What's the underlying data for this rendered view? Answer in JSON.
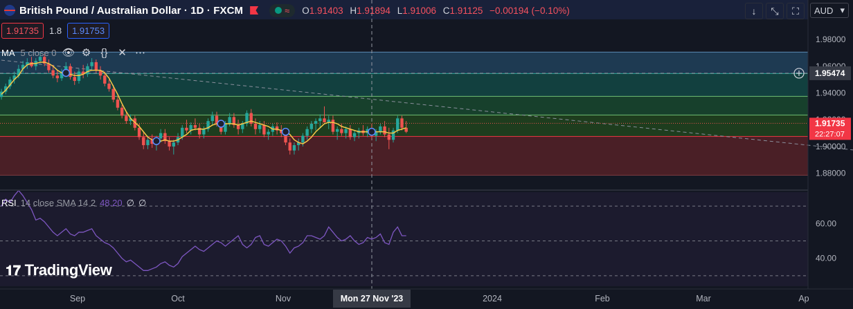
{
  "header": {
    "symbol_title": "British Pound / Australian Dollar · 1D · FXCM",
    "ohlc": {
      "o_label": "O",
      "o": "1.91403",
      "h_label": "H",
      "h": "1.91894",
      "l_label": "L",
      "l": "1.91006",
      "c_label": "C",
      "c": "1.91125",
      "change": "−0.00194 (−0.10%)"
    },
    "sell_price": "1.91735",
    "spread": "1.8",
    "buy_price": "1.91753",
    "currency": "AUD",
    "buttons": [
      "down-arrow-icon",
      "collapse-icon",
      "fullscreen-icon"
    ]
  },
  "ma_legend": {
    "name": "MA",
    "params": "5 close 0"
  },
  "rsi_legend": {
    "name": "RSI",
    "params": "14 close SMA 14 2",
    "value": "48.20",
    "extra1": "∅",
    "extra2": "∅"
  },
  "logo": {
    "text": "TradingView"
  },
  "colors": {
    "bg": "#131722",
    "up": "#26a69a",
    "down": "#ef5350",
    "ma": "#f7c948",
    "rsi": "#7e57c2",
    "accent": "#2962ff"
  },
  "chart_data": {
    "type": "candlestick",
    "title": "British Pound / Australian Dollar · 1D · FXCM",
    "ylim": [
      1.87,
      1.995
    ],
    "y_ticks": [
      "1.98000",
      "1.96000",
      "1.94000",
      "1.92000",
      "1.90000",
      "1.88000"
    ],
    "x_ticks": [
      "Sep",
      "Oct",
      "Nov",
      "Mon 27 Nov '23",
      "2024",
      "Feb",
      "Mar",
      "Ap"
    ],
    "price_labels": {
      "crosshair": "1.95474",
      "last": "1.91735",
      "countdown": "22:27:07"
    },
    "zones": [
      {
        "from": 1.9545,
        "to": 1.9705,
        "color": "#1e3a52"
      },
      {
        "from": 1.9375,
        "to": 1.9545,
        "color": "#12403f"
      },
      {
        "from": 1.9235,
        "to": 1.9375,
        "color": "#17402c"
      },
      {
        "from": 1.9075,
        "to": 1.9235,
        "color": "#1e3d1e"
      },
      {
        "from": 1.8785,
        "to": 1.9075,
        "color": "#4a1f26"
      }
    ],
    "levels": [
      1.9705,
      1.9545,
      1.9375,
      1.9235,
      1.9075,
      1.8785
    ],
    "crosshair_price": 1.95474,
    "last_price": 1.91735,
    "trendline": [
      [
        0,
        1.9645
      ],
      [
        230,
        1.8865
      ]
    ],
    "candles": [
      [
        1.937,
        1.943,
        1.935,
        1.941
      ],
      [
        1.941,
        1.947,
        1.939,
        1.945
      ],
      [
        1.945,
        1.952,
        1.943,
        1.95
      ],
      [
        1.95,
        1.956,
        1.947,
        1.953
      ],
      [
        1.953,
        1.961,
        1.951,
        1.958
      ],
      [
        1.958,
        1.964,
        1.955,
        1.961
      ],
      [
        1.961,
        1.966,
        1.958,
        1.963
      ],
      [
        1.963,
        1.967,
        1.959,
        1.96
      ],
      [
        1.96,
        1.966,
        1.957,
        1.964
      ],
      [
        1.964,
        1.97,
        1.962,
        1.967
      ],
      [
        1.967,
        1.969,
        1.96,
        1.962
      ],
      [
        1.962,
        1.965,
        1.955,
        1.957
      ],
      [
        1.957,
        1.961,
        1.951,
        1.953
      ],
      [
        1.953,
        1.957,
        1.948,
        1.951
      ],
      [
        1.951,
        1.958,
        1.949,
        1.956
      ],
      [
        1.956,
        1.963,
        1.953,
        1.96
      ],
      [
        1.96,
        1.962,
        1.95,
        1.952
      ],
      [
        1.952,
        1.956,
        1.946,
        1.949
      ],
      [
        1.949,
        1.958,
        1.947,
        1.956
      ],
      [
        1.956,
        1.961,
        1.951,
        1.954
      ],
      [
        1.954,
        1.962,
        1.952,
        1.96
      ],
      [
        1.96,
        1.966,
        1.957,
        1.963
      ],
      [
        1.963,
        1.965,
        1.955,
        1.957
      ],
      [
        1.957,
        1.96,
        1.95,
        1.953
      ],
      [
        1.953,
        1.956,
        1.945,
        1.947
      ],
      [
        1.947,
        1.95,
        1.941,
        1.943
      ],
      [
        1.943,
        1.946,
        1.933,
        1.935
      ],
      [
        1.935,
        1.938,
        1.927,
        1.929
      ],
      [
        1.929,
        1.931,
        1.921,
        1.923
      ],
      [
        1.923,
        1.926,
        1.917,
        1.919
      ],
      [
        1.919,
        1.924,
        1.916,
        1.921
      ],
      [
        1.921,
        1.923,
        1.912,
        1.914
      ],
      [
        1.914,
        1.917,
        1.905,
        1.907
      ],
      [
        1.907,
        1.911,
        1.898,
        1.901
      ],
      [
        1.901,
        1.908,
        1.898,
        1.905
      ],
      [
        1.905,
        1.909,
        1.899,
        1.902
      ],
      [
        1.902,
        1.908,
        1.897,
        1.906
      ],
      [
        1.906,
        1.913,
        1.903,
        1.91
      ],
      [
        1.91,
        1.913,
        1.902,
        1.904
      ],
      [
        1.904,
        1.907,
        1.897,
        1.9
      ],
      [
        1.9,
        1.905,
        1.894,
        1.903
      ],
      [
        1.903,
        1.91,
        1.901,
        1.907
      ],
      [
        1.907,
        1.916,
        1.905,
        1.914
      ],
      [
        1.914,
        1.92,
        1.91,
        1.912
      ],
      [
        1.912,
        1.918,
        1.909,
        1.916
      ],
      [
        1.916,
        1.921,
        1.912,
        1.914
      ],
      [
        1.914,
        1.917,
        1.906,
        1.909
      ],
      [
        1.909,
        1.915,
        1.906,
        1.913
      ],
      [
        1.913,
        1.921,
        1.911,
        1.919
      ],
      [
        1.919,
        1.926,
        1.916,
        1.923
      ],
      [
        1.923,
        1.926,
        1.915,
        1.917
      ],
      [
        1.917,
        1.92,
        1.909,
        1.911
      ],
      [
        1.911,
        1.919,
        1.909,
        1.917
      ],
      [
        1.917,
        1.925,
        1.915,
        1.922
      ],
      [
        1.922,
        1.925,
        1.914,
        1.916
      ],
      [
        1.916,
        1.92,
        1.909,
        1.913
      ],
      [
        1.913,
        1.919,
        1.91,
        1.917
      ],
      [
        1.917,
        1.927,
        1.915,
        1.925
      ],
      [
        1.925,
        1.928,
        1.915,
        1.917
      ],
      [
        1.917,
        1.921,
        1.909,
        1.913
      ],
      [
        1.913,
        1.919,
        1.91,
        1.916
      ],
      [
        1.916,
        1.919,
        1.907,
        1.909
      ],
      [
        1.909,
        1.913,
        1.905,
        1.911
      ],
      [
        1.911,
        1.917,
        1.908,
        1.915
      ],
      [
        1.915,
        1.918,
        1.909,
        1.912
      ],
      [
        1.912,
        1.916,
        1.907,
        1.91
      ],
      [
        1.91,
        1.913,
        1.901,
        1.903
      ],
      [
        1.903,
        1.906,
        1.894,
        1.897
      ],
      [
        1.897,
        1.903,
        1.894,
        1.901
      ],
      [
        1.901,
        1.906,
        1.897,
        1.903
      ],
      [
        1.903,
        1.91,
        1.9,
        1.908
      ],
      [
        1.908,
        1.915,
        1.905,
        1.913
      ],
      [
        1.913,
        1.919,
        1.91,
        1.917
      ],
      [
        1.917,
        1.921,
        1.912,
        1.919
      ],
      [
        1.919,
        1.924,
        1.914,
        1.921
      ],
      [
        1.921,
        1.93,
        1.918,
        1.918
      ],
      [
        1.918,
        1.923,
        1.913,
        1.92
      ],
      [
        1.92,
        1.923,
        1.909,
        1.911
      ],
      [
        1.911,
        1.915,
        1.905,
        1.913
      ],
      [
        1.913,
        1.917,
        1.908,
        1.91
      ],
      [
        1.91,
        1.915,
        1.906,
        1.913
      ],
      [
        1.913,
        1.916,
        1.905,
        1.907
      ],
      [
        1.907,
        1.912,
        1.904,
        1.91
      ],
      [
        1.91,
        1.914,
        1.906,
        1.912
      ],
      [
        1.912,
        1.916,
        1.908,
        1.91
      ],
      [
        1.91,
        1.915,
        1.907,
        1.913
      ],
      [
        1.913,
        1.917,
        1.906,
        1.908
      ],
      [
        1.908,
        1.913,
        1.904,
        1.911
      ],
      [
        1.911,
        1.917,
        1.909,
        1.915
      ],
      [
        1.915,
        1.919,
        1.907,
        1.909
      ],
      [
        1.909,
        1.914,
        1.898,
        1.905
      ],
      [
        1.905,
        1.914,
        1.903,
        1.912
      ],
      [
        1.912,
        1.923,
        1.91,
        1.921
      ],
      [
        1.921,
        1.923,
        1.912,
        1.914
      ],
      [
        1.914,
        1.919,
        1.91,
        1.911
      ]
    ],
    "ma_values": [
      1.939,
      1.942,
      1.946,
      1.95,
      1.953,
      1.958,
      1.961,
      1.962,
      1.962,
      1.963,
      1.963,
      1.962,
      1.96,
      1.957,
      1.955,
      1.955,
      1.954,
      1.953,
      1.953,
      1.954,
      1.956,
      1.957,
      1.957,
      1.957,
      1.955,
      1.951,
      1.945,
      1.939,
      1.932,
      1.926,
      1.921,
      1.918,
      1.915,
      1.911,
      1.907,
      1.905,
      1.904,
      1.904,
      1.905,
      1.904,
      1.904,
      1.905,
      1.907,
      1.909,
      1.912,
      1.913,
      1.913,
      1.913,
      1.914,
      1.916,
      1.917,
      1.917,
      1.917,
      1.917,
      1.917,
      1.916,
      1.917,
      1.918,
      1.919,
      1.918,
      1.917,
      1.916,
      1.915,
      1.913,
      1.913,
      1.912,
      1.911,
      1.909,
      1.905,
      1.903,
      1.902,
      1.904,
      1.907,
      1.911,
      1.914,
      1.917,
      1.918,
      1.918,
      1.917,
      1.915,
      1.914,
      1.913,
      1.912,
      1.911,
      1.911,
      1.911,
      1.911,
      1.911,
      1.911,
      1.911,
      1.91,
      1.91,
      1.912,
      1.913,
      1.914
    ],
    "ma_markers": [
      15,
      36,
      51,
      66,
      86
    ],
    "rsi": {
      "ylim": [
        24,
        78
      ],
      "y_ticks": [
        "60.00",
        "40.00"
      ],
      "bands": [
        70,
        50,
        30
      ],
      "values": [
        70,
        74,
        72,
        76,
        79,
        76,
        72,
        68,
        62,
        63,
        61,
        58,
        55,
        53,
        55,
        57,
        54,
        53,
        55,
        55,
        56,
        57,
        53,
        51,
        49,
        48,
        46,
        43,
        40,
        38,
        39,
        37,
        35,
        33,
        33,
        34,
        35,
        37,
        38,
        36,
        35,
        37,
        41,
        43,
        45,
        47,
        45,
        44,
        46,
        48,
        50,
        49,
        47,
        49,
        51,
        53,
        48,
        46,
        48,
        52,
        53,
        48,
        47,
        49,
        51,
        50,
        47,
        43,
        46,
        47,
        49,
        53,
        53,
        52,
        51,
        53,
        58,
        55,
        52,
        50,
        51,
        53,
        50,
        48,
        49,
        52,
        51,
        52,
        54,
        49,
        48,
        55,
        58,
        53,
        53
      ]
    }
  }
}
